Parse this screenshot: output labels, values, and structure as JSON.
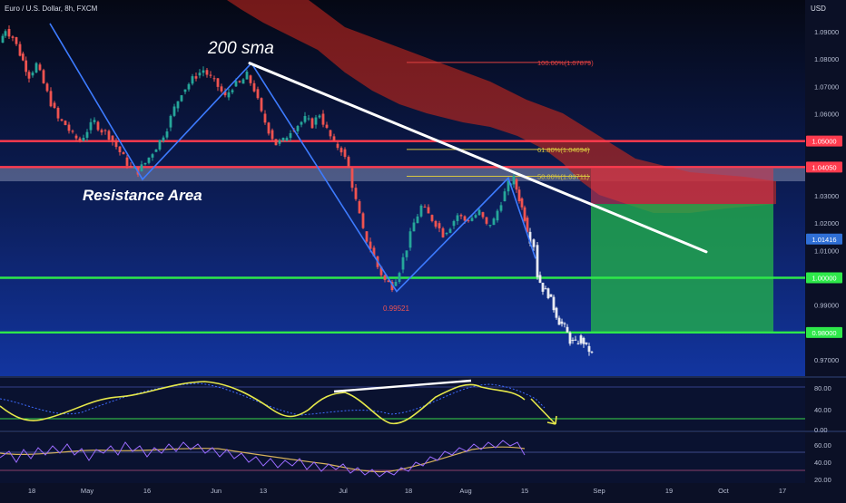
{
  "header": {
    "symbol_title": "Euro / U.S. Dollar, 8h, FXCM",
    "currency": "USD"
  },
  "annotations": {
    "sma_label": "200 sma",
    "resistance_label": "Resistance Area",
    "low_label": "0.99521"
  },
  "fib_levels": [
    {
      "label": "100.00%(1.07879)",
      "value": 1.07879,
      "color": "#e04040"
    },
    {
      "label": "61.80%(1.04694)",
      "value": 1.04694,
      "color": "#d8c640"
    },
    {
      "label": "50.00%(1.03711)",
      "value": 1.03711,
      "color": "#d8c640"
    }
  ],
  "horizontal_levels": [
    {
      "label": "1.05000",
      "value": 1.05,
      "color": "#ff3b4e"
    },
    {
      "label": "1.04050",
      "value": 1.0405,
      "color": "#ff3b4e"
    },
    {
      "label": "1.00000",
      "value": 1.0,
      "color": "#2ee84a"
    },
    {
      "label": "0.98000",
      "value": 0.98,
      "color": "#2ee84a"
    }
  ],
  "current_price": {
    "label": "1.01416",
    "value": 1.01416,
    "color": "#2f6fd6"
  },
  "chart_data": [
    {
      "type": "candlestick",
      "title": "Euro / U.S. Dollar, 8h, FXCM",
      "x_ticks": [
        "18",
        "May",
        "16",
        "Jun",
        "13",
        "Jul",
        "18",
        "Aug",
        "15",
        "Sep",
        "19",
        "Oct",
        "17"
      ],
      "y_ticks": [
        "1.09000",
        "1.08000",
        "1.07000",
        "1.06000",
        "1.05000",
        "1.04000",
        "1.03000",
        "1.02000",
        "1.01000",
        "1.00000",
        "0.99000",
        "0.98000",
        "0.97000"
      ],
      "ylim": [
        0.965,
        1.096
      ],
      "series": [
        {
          "name": "close_path",
          "points": [
            [
              0,
              1.086
            ],
            [
              6,
              1.091
            ],
            [
              14,
              1.088
            ],
            [
              22,
              1.082
            ],
            [
              32,
              1.074
            ],
            [
              40,
              1.078
            ],
            [
              48,
              1.071
            ],
            [
              56,
              1.064
            ],
            [
              64,
              1.058
            ],
            [
              72,
              1.056
            ],
            [
              80,
              1.052
            ],
            [
              88,
              1.05
            ],
            [
              96,
              1.054
            ],
            [
              104,
              1.057
            ],
            [
              112,
              1.054
            ],
            [
              120,
              1.052
            ],
            [
              128,
              1.048
            ],
            [
              136,
              1.044
            ],
            [
              144,
              1.04
            ],
            [
              152,
              1.039
            ],
            [
              160,
              1.042
            ],
            [
              168,
              1.046
            ],
            [
              176,
              1.05
            ],
            [
              184,
              1.055
            ],
            [
              192,
              1.062
            ],
            [
              200,
              1.068
            ],
            [
              208,
              1.071
            ],
            [
              216,
              1.074
            ],
            [
              224,
              1.076
            ],
            [
              232,
              1.073
            ],
            [
              240,
              1.07
            ],
            [
              248,
              1.066
            ],
            [
              256,
              1.07
            ],
            [
              264,
              1.071
            ],
            [
              272,
              1.074
            ],
            [
              280,
              1.069
            ],
            [
              288,
              1.06
            ],
            [
              296,
              1.054
            ],
            [
              304,
              1.049
            ],
            [
              312,
              1.05
            ],
            [
              320,
              1.054
            ],
            [
              328,
              1.056
            ],
            [
              336,
              1.058
            ],
            [
              344,
              1.056
            ],
            [
              352,
              1.06
            ],
            [
              360,
              1.054
            ],
            [
              368,
              1.049
            ],
            [
              376,
              1.047
            ],
            [
              384,
              1.04
            ],
            [
              392,
              1.028
            ],
            [
              400,
              1.017
            ],
            [
              408,
              1.011
            ],
            [
              416,
              1.004
            ],
            [
              424,
              0.999
            ],
            [
              432,
              0.997
            ],
            [
              440,
              1.003
            ],
            [
              448,
              1.011
            ],
            [
              456,
              1.02
            ],
            [
              464,
              1.026
            ],
            [
              472,
              1.023
            ],
            [
              480,
              1.02
            ],
            [
              488,
              1.016
            ],
            [
              496,
              1.019
            ],
            [
              504,
              1.023
            ],
            [
              512,
              1.021
            ],
            [
              520,
              1.022
            ],
            [
              528,
              1.024
            ],
            [
              536,
              1.019
            ],
            [
              544,
              1.021
            ],
            [
              552,
              1.028
            ],
            [
              560,
              1.034
            ],
            [
              566,
              1.036
            ],
            [
              572,
              1.029
            ],
            [
              578,
              1.022
            ],
            [
              584,
              1.014
            ],
            [
              588,
              1.012
            ],
            [
              592,
              1.001
            ],
            [
              598,
              0.996
            ],
            [
              604,
              0.994
            ],
            [
              610,
              0.989
            ],
            [
              616,
              0.984
            ],
            [
              622,
              0.982
            ],
            [
              628,
              0.977
            ],
            [
              634,
              0.976
            ],
            [
              640,
              0.978
            ],
            [
              646,
              0.975
            ],
            [
              652,
              0.972
            ]
          ]
        }
      ],
      "drawings": {
        "sma_line": [
          [
            275,
            1.0785
          ],
          [
            778,
            1.0095
          ]
        ],
        "zigzag": [
          [
            55,
            1.093
          ],
          [
            157,
            1.036
          ],
          [
            277,
            1.0785
          ],
          [
            437,
            0.995
          ],
          [
            560,
            1.0365
          ],
          [
            590,
            1.007
          ]
        ],
        "long_position": {
          "x_start": 651,
          "x_end": 852,
          "entry": 1.027,
          "target_top": 1.04,
          "stop": 0.98
        }
      }
    },
    {
      "type": "line",
      "title": "",
      "y_ticks": [
        "80.00",
        "40.00",
        "0.00"
      ],
      "ylim": [
        0,
        100
      ]
    },
    {
      "type": "line",
      "title": "",
      "y_ticks": [
        "60.00",
        "40.00",
        "20.00"
      ],
      "ylim": [
        15,
        70
      ]
    }
  ],
  "colors": {
    "background": "#0b1026",
    "up": "#26a69a",
    "down": "#ef5350",
    "accent_blue": "#2f6fd6"
  }
}
